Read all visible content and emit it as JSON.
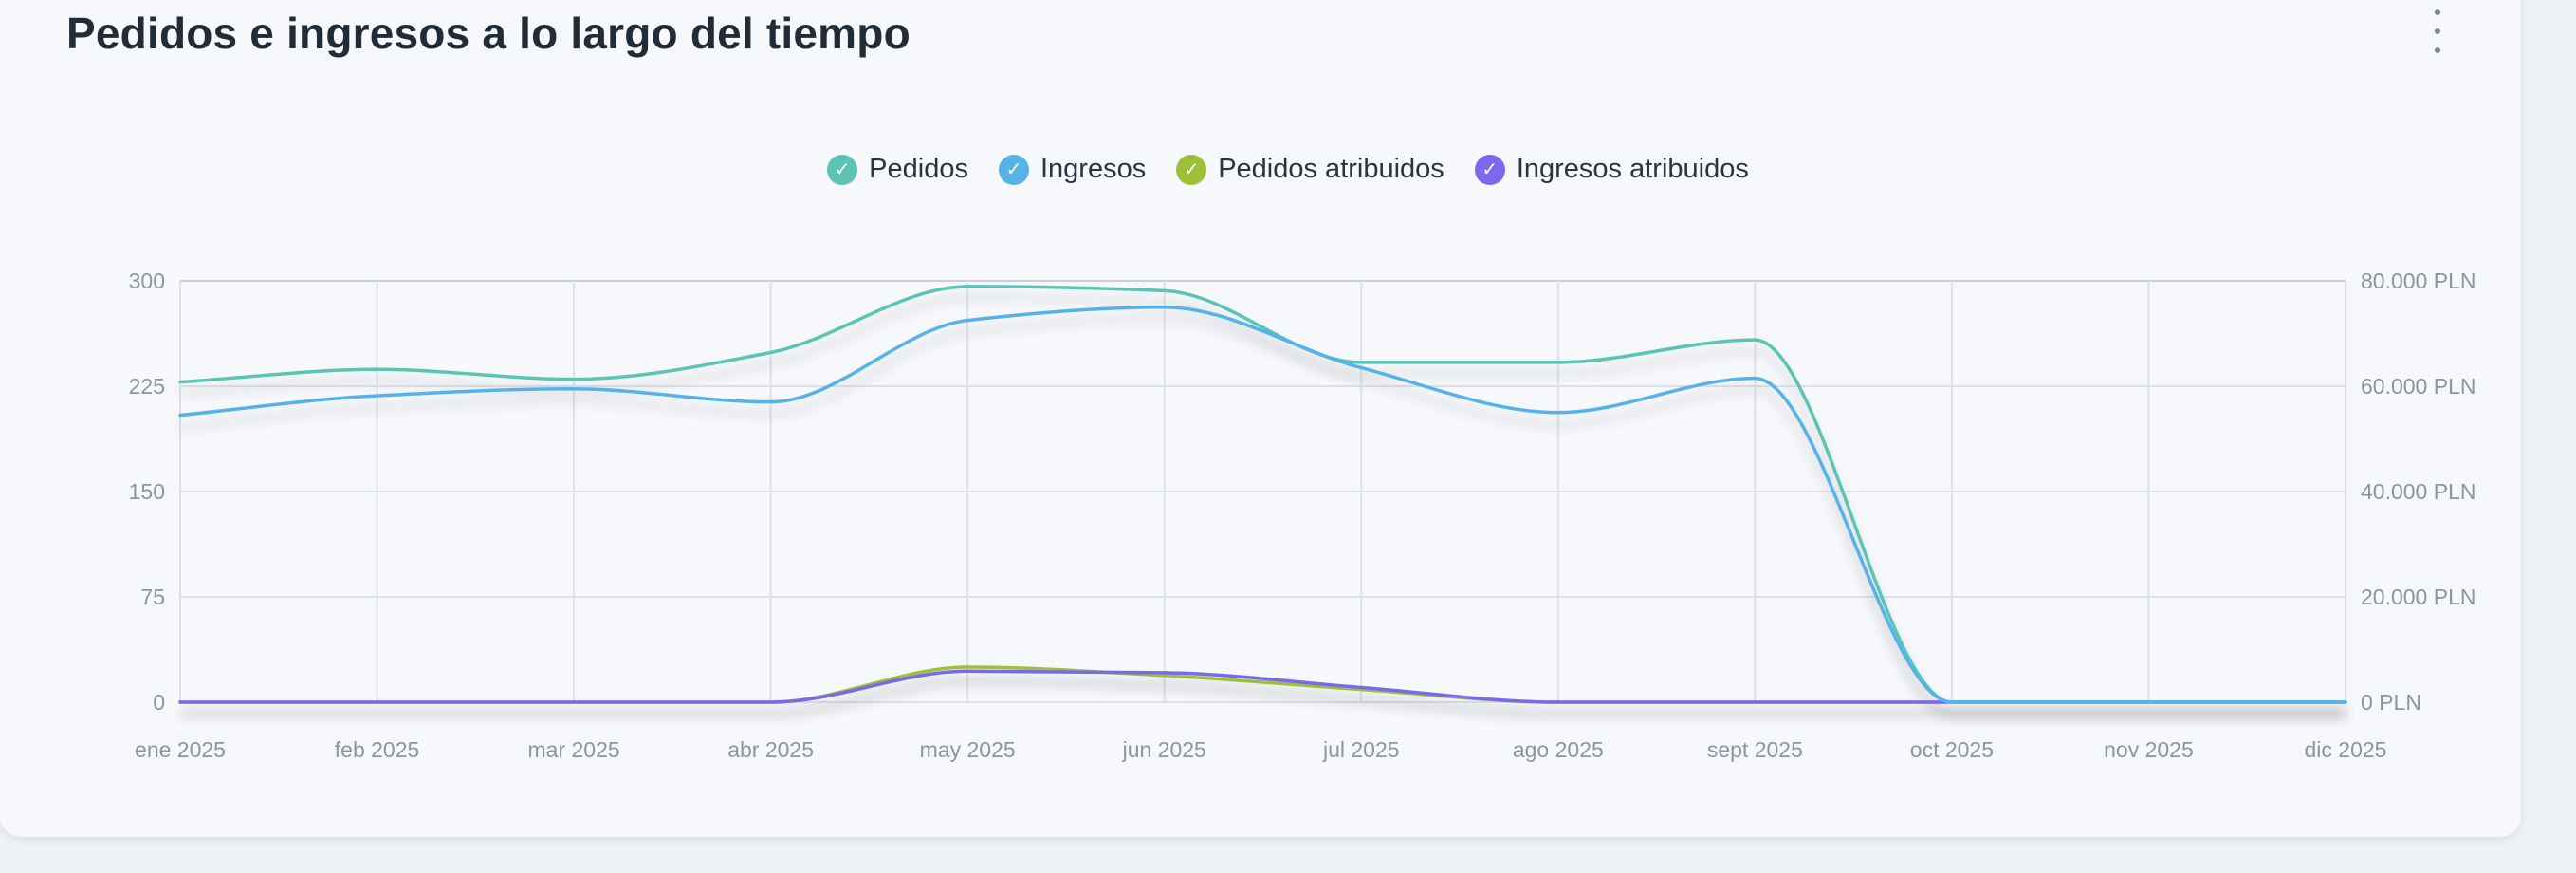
{
  "title": "Pedidos e ingresos a lo largo del tiempo",
  "menu_icon": "more-vertical-icon",
  "legend": [
    {
      "label": "Pedidos",
      "color": "#5cc4b4"
    },
    {
      "label": "Ingresos",
      "color": "#56b3ea"
    },
    {
      "label": "Pedidos atribuidos",
      "color": "#9cc038"
    },
    {
      "label": "Ingresos atribuidos",
      "color": "#7b68ee"
    }
  ],
  "chart_data": {
    "type": "line",
    "title": "Pedidos e ingresos a lo largo del tiempo",
    "categories": [
      "ene 2025",
      "feb 2025",
      "mar 2025",
      "abr 2025",
      "may 2025",
      "jun 2025",
      "jul 2025",
      "ago 2025",
      "sept 2025",
      "oct 2025",
      "nov 2025",
      "dic 2025"
    ],
    "y_left": {
      "min": 0,
      "max": 300,
      "ticks": [
        0,
        75,
        150,
        225,
        300
      ]
    },
    "y_right": {
      "min": 0,
      "max": 80000,
      "ticks": [
        0,
        20000,
        40000,
        60000,
        80000
      ],
      "tick_labels": [
        "0 PLN",
        "20.000 PLN",
        "40.000 PLN",
        "60.000 PLN",
        "80.000 PLN"
      ]
    },
    "grid": true,
    "legend_position": "top-center",
    "series": [
      {
        "name": "Pedidos",
        "axis": "left",
        "color": "#5cc4b4",
        "values": [
          228,
          237,
          230,
          249,
          296,
          293,
          242,
          242,
          258,
          0,
          0,
          0
        ]
      },
      {
        "name": "Ingresos",
        "axis": "right",
        "color": "#56b3ea",
        "values": [
          54500,
          58200,
          59500,
          57000,
          72500,
          75000,
          63500,
          55000,
          61500,
          0,
          0,
          0
        ]
      },
      {
        "name": "Pedidos atribuidos",
        "axis": "left",
        "color": "#9cc038",
        "values": [
          0,
          0,
          0,
          0,
          25,
          19,
          9,
          0,
          0,
          0,
          0,
          0
        ]
      },
      {
        "name": "Ingresos atribuidos",
        "axis": "right",
        "color": "#7b68ee",
        "values": [
          0,
          0,
          0,
          0,
          5900,
          5600,
          2800,
          0,
          0,
          0,
          0,
          0
        ]
      }
    ]
  }
}
